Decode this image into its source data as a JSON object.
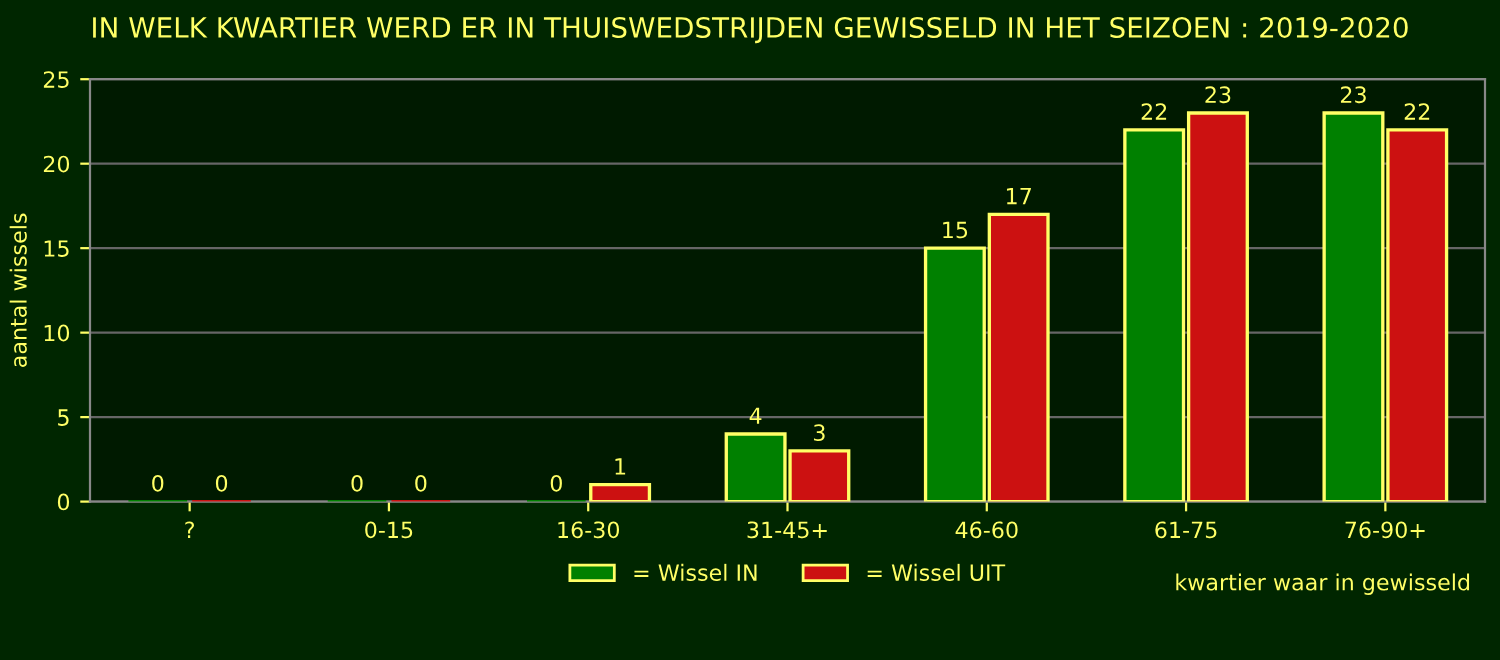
{
  "chart_data": {
    "type": "bar",
    "title": "IN WELK KWARTIER WERD ER IN THUISWEDSTRIJDEN GEWISSELD IN HET SEIZOEN : 2019-2020",
    "xlabel": "kwartier waar in gewisseld",
    "ylabel": "aantal wissels",
    "categories": [
      "?",
      "0-15",
      "16-30",
      "31-45+",
      "46-60",
      "61-75",
      "76-90+"
    ],
    "series": [
      {
        "name": "= Wissel IN",
        "color": "#008000",
        "values": [
          0,
          0,
          0,
          4,
          15,
          22,
          23
        ]
      },
      {
        "name": "= Wissel UIT",
        "color": "#cc1111",
        "values": [
          0,
          0,
          1,
          3,
          17,
          23,
          22
        ]
      }
    ],
    "ylim": [
      0,
      25
    ],
    "yticks": [
      0,
      5,
      10,
      15,
      20,
      25
    ],
    "grid": "y",
    "legend": "bottom",
    "data_labels": true
  }
}
